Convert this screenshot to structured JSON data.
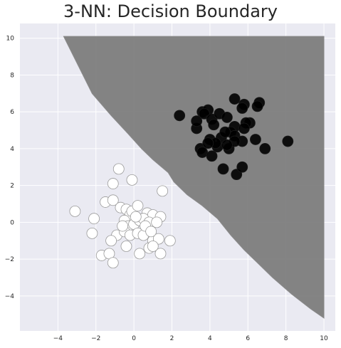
{
  "chart_data": {
    "type": "scatter",
    "title": "3-NN: Decision Boundary",
    "xlabel": "",
    "ylabel": "",
    "xlim": [
      -6.0,
      10.6
    ],
    "ylim": [
      -5.9,
      10.8
    ],
    "x_ticks": [
      -4,
      -2,
      0,
      2,
      4,
      6,
      8,
      10
    ],
    "y_ticks": [
      -4,
      -2,
      0,
      2,
      4,
      6,
      8,
      10
    ],
    "grid": true,
    "background": "#eaeaf2",
    "decision_region": {
      "class": 1,
      "color": "#7a7a7a",
      "boundary": [
        [
          -3.7,
          10.1
        ],
        [
          10.0,
          10.1
        ],
        [
          10.0,
          -5.2
        ],
        [
          9.3,
          -4.7
        ],
        [
          8.3,
          -3.9
        ],
        [
          7.3,
          -3.0
        ],
        [
          6.5,
          -2.2
        ],
        [
          5.8,
          -1.5
        ],
        [
          5.1,
          -0.7
        ],
        [
          4.4,
          0.2
        ],
        [
          3.6,
          0.9
        ],
        [
          2.8,
          1.5
        ],
        [
          2.1,
          2.2
        ],
        [
          1.8,
          2.7
        ],
        [
          1.0,
          3.4
        ],
        [
          0.4,
          4.0
        ],
        [
          -0.3,
          4.8
        ],
        [
          -1.2,
          5.8
        ],
        [
          -2.2,
          7.0
        ],
        [
          -3.7,
          10.1
        ]
      ]
    },
    "series": [
      {
        "class": 1,
        "color": "#000000",
        "points": [
          [
            2.4,
            5.8
          ],
          [
            3.3,
            5.1
          ],
          [
            3.3,
            5.5
          ],
          [
            3.6,
            6.0
          ],
          [
            3.9,
            6.1
          ],
          [
            3.7,
            5.9
          ],
          [
            4.1,
            5.6
          ],
          [
            4.2,
            5.3
          ],
          [
            4.5,
            5.9
          ],
          [
            4.9,
            5.7
          ],
          [
            5.3,
            6.7
          ],
          [
            5.8,
            6.4
          ],
          [
            5.7,
            6.2
          ],
          [
            6.6,
            6.5
          ],
          [
            6.5,
            6.3
          ],
          [
            6.1,
            5.4
          ],
          [
            5.9,
            5.4
          ],
          [
            5.3,
            5.2
          ],
          [
            5.1,
            4.9
          ],
          [
            5.3,
            4.7
          ],
          [
            5.8,
            5.1
          ],
          [
            5.7,
            4.4
          ],
          [
            6.4,
            4.5
          ],
          [
            6.9,
            4.0
          ],
          [
            8.1,
            4.4
          ],
          [
            3.5,
            4.0
          ],
          [
            3.6,
            3.8
          ],
          [
            4.0,
            4.5
          ],
          [
            4.1,
            3.6
          ],
          [
            4.4,
            4.1
          ],
          [
            4.6,
            4.6
          ],
          [
            4.7,
            2.9
          ],
          [
            5.0,
            4.0
          ],
          [
            5.3,
            4.4
          ],
          [
            5.4,
            2.6
          ],
          [
            5.7,
            3.0
          ],
          [
            4.8,
            4.9
          ],
          [
            4.3,
            4.3
          ],
          [
            4.9,
            4.2
          ],
          [
            3.9,
            4.3
          ]
        ]
      },
      {
        "class": 0,
        "color": "#ffffff",
        "points": [
          [
            -3.1,
            0.6
          ],
          [
            -2.1,
            0.2
          ],
          [
            -2.2,
            -0.6
          ],
          [
            -1.7,
            -1.8
          ],
          [
            -1.3,
            -1.7
          ],
          [
            -1.1,
            -2.2
          ],
          [
            -1.5,
            1.1
          ],
          [
            -1.1,
            1.2
          ],
          [
            -1.1,
            2.1
          ],
          [
            -0.8,
            2.9
          ],
          [
            -0.1,
            2.3
          ],
          [
            1.5,
            1.7
          ],
          [
            -0.7,
            0.8
          ],
          [
            -0.4,
            0.7
          ],
          [
            -0.2,
            0.4
          ],
          [
            -0.1,
            0.6
          ],
          [
            0.2,
            0.9
          ],
          [
            0.7,
            0.5
          ],
          [
            1.0,
            0.4
          ],
          [
            1.4,
            0.3
          ],
          [
            -0.5,
            0.1
          ],
          [
            -0.3,
            -0.2
          ],
          [
            0.0,
            -0.1
          ],
          [
            0.3,
            0.1
          ],
          [
            0.5,
            0.2
          ],
          [
            0.8,
            0.0
          ],
          [
            -0.9,
            -0.7
          ],
          [
            -0.5,
            -0.5
          ],
          [
            -0.2,
            -0.7
          ],
          [
            0.2,
            -0.6
          ],
          [
            0.5,
            -0.7
          ],
          [
            1.0,
            -1.0
          ],
          [
            1.3,
            -0.9
          ],
          [
            1.9,
            -1.0
          ],
          [
            -1.2,
            -1.0
          ],
          [
            -0.4,
            -1.3
          ],
          [
            0.3,
            -1.7
          ],
          [
            0.8,
            -1.4
          ],
          [
            1.0,
            -1.3
          ],
          [
            1.4,
            -1.7
          ],
          [
            0.1,
            0.3
          ],
          [
            0.6,
            -0.2
          ],
          [
            -0.6,
            -0.2
          ],
          [
            0.9,
            -0.5
          ],
          [
            1.2,
            0.0
          ]
        ]
      }
    ]
  }
}
